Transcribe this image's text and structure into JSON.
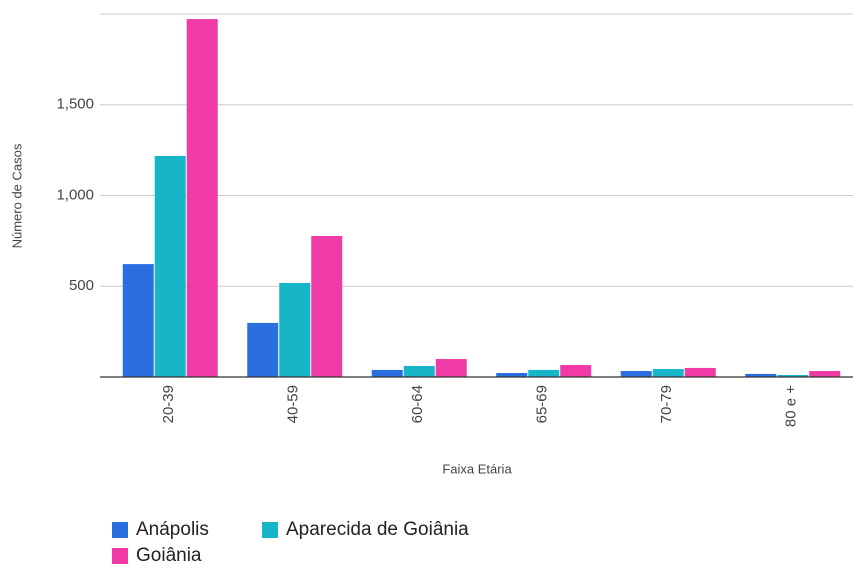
{
  "chart_data": {
    "type": "bar",
    "x_label": "Faixa Etária",
    "y_label": "Número de Casos",
    "categories": [
      "20-39",
      "40-59",
      "60-64",
      "65-69",
      "70-79",
      "80 e +"
    ],
    "series": [
      {
        "name": "Anápolis",
        "color": "#2a6ee0",
        "values": [
          622,
          298,
          39,
          22,
          33,
          17
        ]
      },
      {
        "name": "Aparecida de Goiânia",
        "color": "#17b5c8",
        "values": [
          1218,
          518,
          61,
          39,
          44,
          11
        ]
      },
      {
        "name": "Goiânia",
        "color": "#f03aa5",
        "values": [
          1972,
          777,
          99,
          66,
          50,
          33
        ]
      }
    ],
    "ylim": [
      0,
      2000
    ],
    "yticks": [
      500,
      {
        "value": 1000,
        "label": "1,000"
      },
      {
        "value": 1500,
        "label": "1,500"
      }
    ],
    "grid": true
  }
}
